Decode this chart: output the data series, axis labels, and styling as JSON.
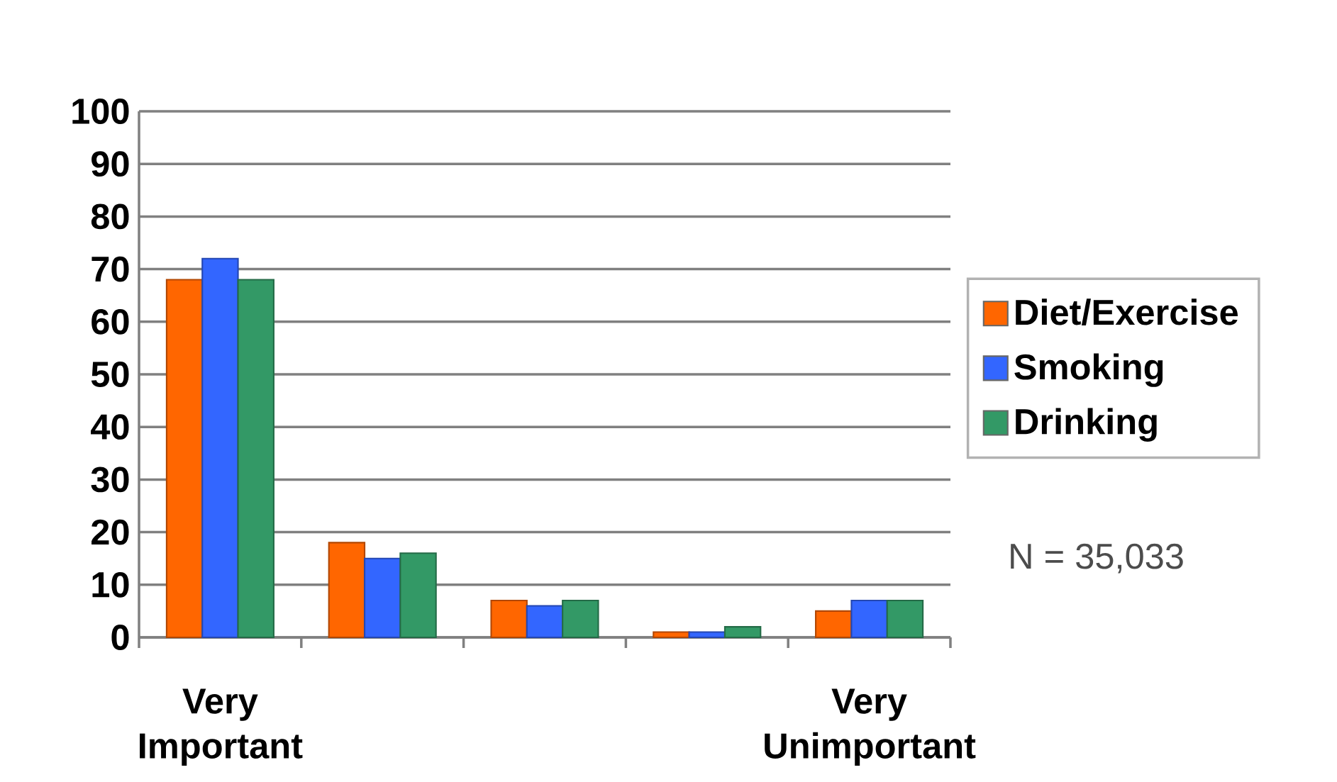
{
  "chart_data": {
    "type": "bar",
    "categories": [
      "Very Important",
      null,
      null,
      null,
      "Very Unimportant"
    ],
    "series": [
      {
        "name": "Diet/Exercise",
        "color": "#ff6600",
        "values": [
          68,
          18,
          7,
          1,
          5
        ]
      },
      {
        "name": "Smoking",
        "color": "#3366ff",
        "values": [
          72,
          15,
          6,
          1,
          7
        ]
      },
      {
        "name": "Drinking",
        "color": "#339966",
        "values": [
          68,
          16,
          7,
          2,
          7
        ]
      }
    ],
    "ylim": [
      0,
      100
    ],
    "yticks": [
      0,
      10,
      20,
      30,
      40,
      50,
      60,
      70,
      80,
      90,
      100
    ],
    "grid": "y",
    "legend": "right",
    "annotations": [
      "N = 35,033"
    ]
  }
}
